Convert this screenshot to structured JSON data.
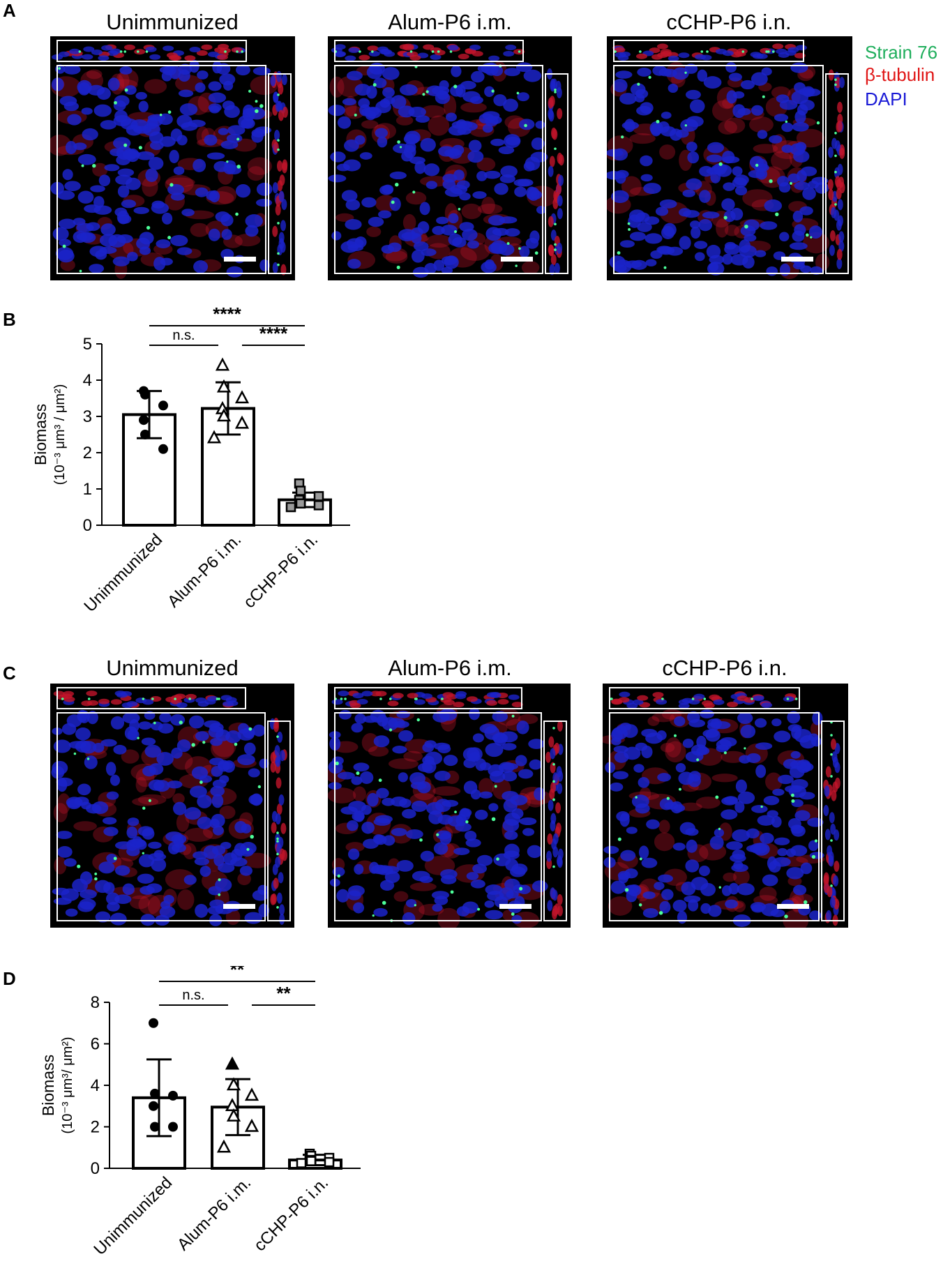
{
  "panel_letters": {
    "a": "A",
    "b": "B",
    "c": "C",
    "d": "D"
  },
  "microscopy_titles": [
    "Unimmunized",
    "Alum-P6 i.m.",
    "cCHP-P6 i.n."
  ],
  "legend": [
    {
      "label": "Strain 76",
      "color": "#1fae5c"
    },
    {
      "label": "β-tubulin",
      "color": "#e01515"
    },
    {
      "label": "DAPI",
      "color": "#1a1ad6"
    }
  ],
  "image_colors": {
    "dapi": "#1b23c9",
    "tubulin": "#c0142a",
    "strain": "#4dff9a",
    "frame": "#ffffff"
  },
  "chart_data": [
    {
      "type": "bar",
      "panel": "B",
      "categories": [
        "Unimmunized",
        "Alum-P6 i.m.",
        "cCHP-P6 i.n."
      ],
      "values": [
        3.05,
        3.22,
        0.7
      ],
      "error": [
        0.65,
        0.72,
        0.2
      ],
      "points": [
        [
          3.7,
          3.6,
          3.3,
          2.9,
          2.5,
          2.1
        ],
        [
          4.4,
          3.8,
          3.5,
          3.2,
          3.0,
          2.8,
          2.4
        ],
        [
          1.15,
          0.95,
          0.8,
          0.7,
          0.6,
          0.55,
          0.5
        ]
      ],
      "markers": [
        "circle-filled",
        "triangle-open",
        "square-gray"
      ],
      "ylabel_line1": "Biomass",
      "ylabel_line2": "(10⁻³ μm³ / μm²)",
      "ylim": [
        0,
        5
      ],
      "yticks": [
        "0",
        "1",
        "2",
        "3",
        "4",
        "5"
      ],
      "significance": [
        {
          "from": 0,
          "to": 2,
          "label": "****"
        },
        {
          "from": 0,
          "to": 1,
          "label": "n.s."
        },
        {
          "from": 1,
          "to": 2,
          "label": "****"
        }
      ]
    },
    {
      "type": "bar",
      "panel": "D",
      "categories": [
        "Unimmunized",
        "Alum-P6 i.m.",
        "cCHP-P6 i.n."
      ],
      "values": [
        3.4,
        2.95,
        0.4
      ],
      "error": [
        1.85,
        1.35,
        0.25
      ],
      "points": [
        [
          7.0,
          3.6,
          3.5,
          3.0,
          2.0,
          2.0
        ],
        [
          5.0,
          4.0,
          3.5,
          3.0,
          2.5,
          2.0,
          1.0
        ],
        [
          0.7,
          0.6,
          0.5,
          0.4,
          0.35,
          0.3,
          0.25
        ]
      ],
      "markers": [
        "circle-filled",
        "triangle-mixed",
        "square-open"
      ],
      "ylabel_line1": "Biomass",
      "ylabel_line2": "(10⁻³ μm³/ μm²)",
      "ylim": [
        0,
        8
      ],
      "yticks": [
        "0",
        "2",
        "4",
        "6",
        "8"
      ],
      "significance": [
        {
          "from": 0,
          "to": 2,
          "label": "**"
        },
        {
          "from": 0,
          "to": 1,
          "label": "n.s."
        },
        {
          "from": 1,
          "to": 2,
          "label": "**"
        }
      ]
    }
  ]
}
